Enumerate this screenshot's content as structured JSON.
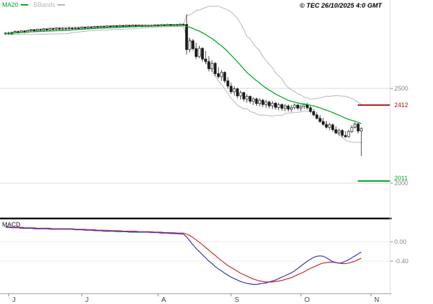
{
  "header": {
    "copyright": "© TEC 26/10/2025 4:0 GMT"
  },
  "legend": {
    "items": [
      {
        "label": "MA20",
        "color": "#00a81e"
      },
      {
        "label": "BBands",
        "color": "#b5b5b5"
      }
    ]
  },
  "chart_data": {
    "type": "candlestick",
    "title": "",
    "xlabel": "",
    "ylabel": "",
    "x_axis": {
      "months": [
        {
          "label": "J",
          "index": 1
        },
        {
          "label": "J",
          "index": 24
        },
        {
          "label": "A",
          "index": 48
        },
        {
          "label": "S",
          "index": 71
        },
        {
          "label": "O",
          "index": 93
        },
        {
          "label": "N",
          "index": 115
        }
      ]
    },
    "price_panel": {
      "ylim": [
        2130,
        2970
      ],
      "gridlines": [
        2500,
        2000
      ],
      "levels": [
        {
          "value": 2412,
          "label": "2412",
          "color": "#aa1414",
          "label_dy": 0
        },
        {
          "value": 2011,
          "label": "2011",
          "color": "#00a32e",
          "label_dy": -4
        }
      ],
      "indicators": {
        "ma_period": 20,
        "bb_period": 20,
        "bb_mult": 2
      }
    },
    "candles_ohlc": [
      [
        2790,
        2798,
        2782,
        2792
      ],
      [
        2792,
        2799,
        2784,
        2788
      ],
      [
        2788,
        2800,
        2783,
        2795
      ],
      [
        2795,
        2806,
        2790,
        2800
      ],
      [
        2800,
        2805,
        2789,
        2796
      ],
      [
        2796,
        2808,
        2792,
        2803
      ],
      [
        2803,
        2807,
        2793,
        2799
      ],
      [
        2799,
        2810,
        2794,
        2806
      ],
      [
        2806,
        2814,
        2800,
        2810
      ],
      [
        2810,
        2813,
        2798,
        2804
      ],
      [
        2804,
        2815,
        2799,
        2811
      ],
      [
        2811,
        2814,
        2802,
        2808
      ],
      [
        2808,
        2818,
        2803,
        2814
      ],
      [
        2814,
        2817,
        2804,
        2809
      ],
      [
        2809,
        2820,
        2805,
        2816
      ],
      [
        2816,
        2819,
        2806,
        2812
      ],
      [
        2812,
        2822,
        2807,
        2818
      ],
      [
        2818,
        2821,
        2808,
        2813
      ],
      [
        2813,
        2821,
        2809,
        2817
      ],
      [
        2817,
        2820,
        2810,
        2815
      ],
      [
        2815,
        2823,
        2811,
        2819
      ],
      [
        2819,
        2822,
        2810,
        2816
      ],
      [
        2816,
        2824,
        2812,
        2820
      ],
      [
        2820,
        2823,
        2811,
        2817
      ],
      [
        2817,
        2827,
        2813,
        2823
      ],
      [
        2823,
        2826,
        2814,
        2819
      ],
      [
        2819,
        2829,
        2815,
        2825
      ],
      [
        2825,
        2828,
        2816,
        2821
      ],
      [
        2821,
        2831,
        2817,
        2827
      ],
      [
        2827,
        2830,
        2818,
        2823
      ],
      [
        2823,
        2832,
        2819,
        2828
      ],
      [
        2828,
        2831,
        2818,
        2824
      ],
      [
        2824,
        2834,
        2820,
        2830
      ],
      [
        2830,
        2833,
        2820,
        2826
      ],
      [
        2826,
        2835,
        2821,
        2831
      ],
      [
        2831,
        2834,
        2822,
        2827
      ],
      [
        2827,
        2836,
        2823,
        2832
      ],
      [
        2832,
        2835,
        2822,
        2828
      ],
      [
        2828,
        2837,
        2823,
        2833
      ],
      [
        2833,
        2836,
        2824,
        2829
      ],
      [
        2829,
        2838,
        2825,
        2834
      ],
      [
        2834,
        2837,
        2824,
        2830
      ],
      [
        2830,
        2837,
        2825,
        2833
      ],
      [
        2833,
        2836,
        2823,
        2829
      ],
      [
        2829,
        2836,
        2824,
        2832
      ],
      [
        2832,
        2835,
        2824,
        2830
      ],
      [
        2830,
        2836,
        2825,
        2832
      ],
      [
        2832,
        2839,
        2827,
        2835
      ],
      [
        2835,
        2838,
        2826,
        2831
      ],
      [
        2831,
        2840,
        2827,
        2836
      ],
      [
        2836,
        2839,
        2828,
        2833
      ],
      [
        2833,
        2842,
        2829,
        2838
      ],
      [
        2838,
        2841,
        2829,
        2834
      ],
      [
        2834,
        2841,
        2828,
        2837
      ],
      [
        2837,
        2840,
        2828,
        2835
      ],
      [
        2835,
        2843,
        2830,
        2839
      ],
      [
        2839,
        2842,
        2830,
        2836
      ],
      [
        2838,
        2893,
        2678,
        2705
      ],
      [
        2705,
        2768,
        2690,
        2752
      ],
      [
        2752,
        2762,
        2700,
        2710
      ],
      [
        2710,
        2742,
        2655,
        2668
      ],
      [
        2668,
        2725,
        2660,
        2712
      ],
      [
        2712,
        2718,
        2640,
        2655
      ],
      [
        2655,
        2698,
        2628,
        2642
      ],
      [
        2642,
        2670,
        2590,
        2604
      ],
      [
        2604,
        2648,
        2586,
        2633
      ],
      [
        2633,
        2640,
        2565,
        2578
      ],
      [
        2578,
        2612,
        2552,
        2562
      ],
      [
        2562,
        2598,
        2540,
        2585
      ],
      [
        2585,
        2590,
        2528,
        2540
      ],
      [
        2540,
        2560,
        2498,
        2512
      ],
      [
        2512,
        2530,
        2470,
        2482
      ],
      [
        2482,
        2512,
        2462,
        2498
      ],
      [
        2498,
        2505,
        2448,
        2460
      ],
      [
        2460,
        2488,
        2442,
        2478
      ],
      [
        2478,
        2482,
        2432,
        2444
      ],
      [
        2444,
        2470,
        2425,
        2458
      ],
      [
        2458,
        2464,
        2420,
        2432
      ],
      [
        2432,
        2455,
        2412,
        2445
      ],
      [
        2445,
        2452,
        2408,
        2420
      ],
      [
        2420,
        2448,
        2405,
        2438
      ],
      [
        2438,
        2444,
        2402,
        2415
      ],
      [
        2415,
        2440,
        2398,
        2428
      ],
      [
        2428,
        2436,
        2395,
        2408
      ],
      [
        2408,
        2432,
        2392,
        2422
      ],
      [
        2422,
        2430,
        2388,
        2400
      ],
      [
        2400,
        2425,
        2385,
        2415
      ],
      [
        2415,
        2422,
        2382,
        2395
      ],
      [
        2395,
        2418,
        2380,
        2408
      ],
      [
        2408,
        2415,
        2378,
        2390
      ],
      [
        2390,
        2412,
        2375,
        2398
      ],
      [
        2398,
        2420,
        2390,
        2412
      ],
      [
        2412,
        2418,
        2385,
        2396
      ],
      [
        2396,
        2415,
        2380,
        2405
      ],
      [
        2405,
        2422,
        2392,
        2415
      ],
      [
        2415,
        2425,
        2388,
        2398
      ],
      [
        2398,
        2408,
        2370,
        2378
      ],
      [
        2378,
        2392,
        2352,
        2360
      ],
      [
        2360,
        2375,
        2335,
        2342
      ],
      [
        2342,
        2358,
        2318,
        2325
      ],
      [
        2325,
        2345,
        2302,
        2310
      ],
      [
        2310,
        2328,
        2288,
        2295
      ],
      [
        2295,
        2318,
        2280,
        2308
      ],
      [
        2308,
        2315,
        2272,
        2282
      ],
      [
        2282,
        2300,
        2258,
        2265
      ],
      [
        2265,
        2288,
        2250,
        2278
      ],
      [
        2278,
        2285,
        2242,
        2252
      ],
      [
        2252,
        2275,
        2238,
        2245
      ],
      [
        2245,
        2282,
        2240,
        2272
      ],
      [
        2272,
        2305,
        2265,
        2295
      ],
      [
        2295,
        2322,
        2288,
        2312
      ],
      [
        2312,
        2318,
        2262,
        2275
      ],
      [
        2275,
        2295,
        2142,
        2288
      ]
    ],
    "macd_panel": {
      "title": "MACD",
      "ylim": [
        -0.95,
        0.35
      ],
      "gridlines": [
        {
          "value": 0,
          "label": "0.00"
        },
        {
          "value": -0.4,
          "label": "-0.40"
        }
      ],
      "colors": {
        "macd": "#3333bb",
        "signal": "#cc2222"
      },
      "macd": [
        0.3,
        0.3,
        0.29,
        0.29,
        0.29,
        0.28,
        0.28,
        0.28,
        0.28,
        0.27,
        0.27,
        0.27,
        0.27,
        0.27,
        0.26,
        0.26,
        0.26,
        0.26,
        0.26,
        0.26,
        0.26,
        0.26,
        0.25,
        0.25,
        0.25,
        0.24,
        0.24,
        0.24,
        0.23,
        0.23,
        0.23,
        0.22,
        0.22,
        0.22,
        0.22,
        0.21,
        0.21,
        0.21,
        0.21,
        0.2,
        0.2,
        0.2,
        0.2,
        0.2,
        0.2,
        0.2,
        0.19,
        0.19,
        0.19,
        0.18,
        0.18,
        0.18,
        0.17,
        0.17,
        0.17,
        0.16,
        0.16,
        0.1,
        0.02,
        -0.06,
        -0.14,
        -0.2,
        -0.27,
        -0.33,
        -0.4,
        -0.45,
        -0.51,
        -0.56,
        -0.6,
        -0.65,
        -0.69,
        -0.73,
        -0.76,
        -0.79,
        -0.82,
        -0.84,
        -0.86,
        -0.87,
        -0.88,
        -0.88,
        -0.87,
        -0.86,
        -0.85,
        -0.83,
        -0.81,
        -0.79,
        -0.76,
        -0.73,
        -0.7,
        -0.67,
        -0.64,
        -0.6,
        -0.55,
        -0.5,
        -0.45,
        -0.4,
        -0.36,
        -0.32,
        -0.3,
        -0.29,
        -0.3,
        -0.33,
        -0.37,
        -0.41,
        -0.43,
        -0.44,
        -0.43,
        -0.4,
        -0.37,
        -0.33,
        -0.29,
        -0.25,
        -0.21
      ],
      "signal": [
        0.31,
        0.31,
        0.3,
        0.3,
        0.3,
        0.3,
        0.29,
        0.29,
        0.29,
        0.29,
        0.28,
        0.28,
        0.28,
        0.28,
        0.28,
        0.27,
        0.27,
        0.27,
        0.27,
        0.27,
        0.27,
        0.27,
        0.26,
        0.26,
        0.26,
        0.26,
        0.25,
        0.25,
        0.25,
        0.24,
        0.24,
        0.24,
        0.24,
        0.23,
        0.23,
        0.23,
        0.23,
        0.22,
        0.22,
        0.22,
        0.22,
        0.22,
        0.21,
        0.21,
        0.21,
        0.21,
        0.21,
        0.2,
        0.2,
        0.2,
        0.19,
        0.19,
        0.19,
        0.19,
        0.18,
        0.18,
        0.18,
        0.16,
        0.13,
        0.09,
        0.04,
        -0.01,
        -0.06,
        -0.12,
        -0.17,
        -0.23,
        -0.28,
        -0.34,
        -0.39,
        -0.44,
        -0.49,
        -0.53,
        -0.57,
        -0.61,
        -0.65,
        -0.68,
        -0.71,
        -0.74,
        -0.77,
        -0.79,
        -0.81,
        -0.82,
        -0.83,
        -0.83,
        -0.83,
        -0.82,
        -0.81,
        -0.8,
        -0.78,
        -0.76,
        -0.74,
        -0.71,
        -0.68,
        -0.65,
        -0.62,
        -0.58,
        -0.55,
        -0.52,
        -0.49,
        -0.46,
        -0.44,
        -0.43,
        -0.42,
        -0.42,
        -0.43,
        -0.44,
        -0.45,
        -0.45,
        -0.44,
        -0.42,
        -0.4,
        -0.37,
        -0.34
      ]
    }
  }
}
